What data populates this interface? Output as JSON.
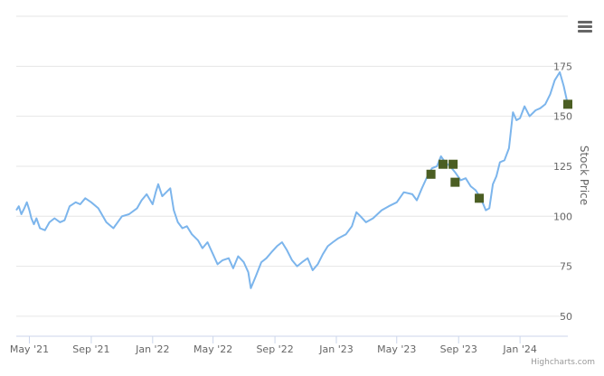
{
  "chart_data": {
    "type": "line",
    "ylabel": "Stock Price",
    "ylim": [
      40,
      200
    ],
    "y_ticks": [
      50,
      75,
      100,
      125,
      150,
      175
    ],
    "x_tick_labels": [
      "May '21",
      "Sep '21",
      "Jan '22",
      "May '22",
      "Sep '22",
      "Jan '23",
      "May '23",
      "Sep '23",
      "Jan '24"
    ],
    "x_range": [
      "2021-04-05",
      "2024-04-05"
    ],
    "grid": true,
    "colors": {
      "line": "#7cb5ec",
      "marker": "#4b5e23",
      "grid": "#e6e6e6",
      "axis": "#ccd6eb",
      "text": "#666666"
    },
    "series": [
      {
        "values": [
          {
            "x": "2021-04-05",
            "y": 103
          },
          {
            "x": "2021-04-10",
            "y": 105
          },
          {
            "x": "2021-04-15",
            "y": 101
          },
          {
            "x": "2021-04-21",
            "y": 104
          },
          {
            "x": "2021-04-26",
            "y": 107
          },
          {
            "x": "2021-05-01",
            "y": 103
          },
          {
            "x": "2021-05-05",
            "y": 99
          },
          {
            "x": "2021-05-10",
            "y": 96
          },
          {
            "x": "2021-05-15",
            "y": 99
          },
          {
            "x": "2021-05-22",
            "y": 94
          },
          {
            "x": "2021-06-01",
            "y": 93
          },
          {
            "x": "2021-06-10",
            "y": 97
          },
          {
            "x": "2021-06-20",
            "y": 99
          },
          {
            "x": "2021-07-01",
            "y": 97
          },
          {
            "x": "2021-07-10",
            "y": 98
          },
          {
            "x": "2021-07-20",
            "y": 105
          },
          {
            "x": "2021-08-01",
            "y": 107
          },
          {
            "x": "2021-08-10",
            "y": 106
          },
          {
            "x": "2021-08-20",
            "y": 109
          },
          {
            "x": "2021-09-01",
            "y": 107
          },
          {
            "x": "2021-09-15",
            "y": 104
          },
          {
            "x": "2021-10-01",
            "y": 97
          },
          {
            "x": "2021-10-15",
            "y": 94
          },
          {
            "x": "2021-11-01",
            "y": 100
          },
          {
            "x": "2021-11-15",
            "y": 101
          },
          {
            "x": "2021-12-01",
            "y": 104
          },
          {
            "x": "2021-12-10",
            "y": 108
          },
          {
            "x": "2021-12-20",
            "y": 111
          },
          {
            "x": "2022-01-01",
            "y": 106
          },
          {
            "x": "2022-01-07",
            "y": 112
          },
          {
            "x": "2022-01-12",
            "y": 116
          },
          {
            "x": "2022-01-20",
            "y": 110
          },
          {
            "x": "2022-01-28",
            "y": 112
          },
          {
            "x": "2022-02-05",
            "y": 114
          },
          {
            "x": "2022-02-12",
            "y": 103
          },
          {
            "x": "2022-02-20",
            "y": 97
          },
          {
            "x": "2022-03-01",
            "y": 94
          },
          {
            "x": "2022-03-10",
            "y": 95
          },
          {
            "x": "2022-03-20",
            "y": 91
          },
          {
            "x": "2022-04-01",
            "y": 88
          },
          {
            "x": "2022-04-10",
            "y": 84
          },
          {
            "x": "2022-04-20",
            "y": 87
          },
          {
            "x": "2022-05-01",
            "y": 81
          },
          {
            "x": "2022-05-10",
            "y": 76
          },
          {
            "x": "2022-05-20",
            "y": 78
          },
          {
            "x": "2022-06-01",
            "y": 79
          },
          {
            "x": "2022-06-10",
            "y": 74
          },
          {
            "x": "2022-06-20",
            "y": 80
          },
          {
            "x": "2022-07-01",
            "y": 77
          },
          {
            "x": "2022-07-10",
            "y": 72
          },
          {
            "x": "2022-07-15",
            "y": 64
          },
          {
            "x": "2022-07-25",
            "y": 70
          },
          {
            "x": "2022-08-05",
            "y": 77
          },
          {
            "x": "2022-08-15",
            "y": 79
          },
          {
            "x": "2022-08-25",
            "y": 82
          },
          {
            "x": "2022-09-05",
            "y": 85
          },
          {
            "x": "2022-09-15",
            "y": 87
          },
          {
            "x": "2022-09-25",
            "y": 83
          },
          {
            "x": "2022-10-05",
            "y": 78
          },
          {
            "x": "2022-10-15",
            "y": 75
          },
          {
            "x": "2022-10-25",
            "y": 77
          },
          {
            "x": "2022-11-05",
            "y": 79
          },
          {
            "x": "2022-11-15",
            "y": 73
          },
          {
            "x": "2022-11-25",
            "y": 76
          },
          {
            "x": "2022-12-05",
            "y": 81
          },
          {
            "x": "2022-12-15",
            "y": 85
          },
          {
            "x": "2022-12-25",
            "y": 87
          },
          {
            "x": "2023-01-05",
            "y": 89
          },
          {
            "x": "2023-01-20",
            "y": 91
          },
          {
            "x": "2023-02-01",
            "y": 95
          },
          {
            "x": "2023-02-10",
            "y": 102
          },
          {
            "x": "2023-02-18",
            "y": 100
          },
          {
            "x": "2023-03-01",
            "y": 97
          },
          {
            "x": "2023-03-15",
            "y": 99
          },
          {
            "x": "2023-04-01",
            "y": 103
          },
          {
            "x": "2023-04-15",
            "y": 105
          },
          {
            "x": "2023-05-01",
            "y": 107
          },
          {
            "x": "2023-05-15",
            "y": 112
          },
          {
            "x": "2023-06-01",
            "y": 111
          },
          {
            "x": "2023-06-10",
            "y": 108
          },
          {
            "x": "2023-06-20",
            "y": 114
          },
          {
            "x": "2023-07-01",
            "y": 120
          },
          {
            "x": "2023-07-10",
            "y": 124
          },
          {
            "x": "2023-07-20",
            "y": 125
          },
          {
            "x": "2023-07-28",
            "y": 130
          },
          {
            "x": "2023-08-05",
            "y": 127
          },
          {
            "x": "2023-08-15",
            "y": 125
          },
          {
            "x": "2023-08-25",
            "y": 122
          },
          {
            "x": "2023-09-05",
            "y": 118
          },
          {
            "x": "2023-09-15",
            "y": 119
          },
          {
            "x": "2023-09-25",
            "y": 115
          },
          {
            "x": "2023-10-05",
            "y": 113
          },
          {
            "x": "2023-10-15",
            "y": 109
          },
          {
            "x": "2023-10-25",
            "y": 103
          },
          {
            "x": "2023-11-01",
            "y": 104
          },
          {
            "x": "2023-11-08",
            "y": 116
          },
          {
            "x": "2023-11-15",
            "y": 120
          },
          {
            "x": "2023-11-22",
            "y": 127
          },
          {
            "x": "2023-12-01",
            "y": 128
          },
          {
            "x": "2023-12-10",
            "y": 134
          },
          {
            "x": "2023-12-18",
            "y": 152
          },
          {
            "x": "2023-12-25",
            "y": 148
          },
          {
            "x": "2024-01-01",
            "y": 149
          },
          {
            "x": "2024-01-10",
            "y": 155
          },
          {
            "x": "2024-01-20",
            "y": 150
          },
          {
            "x": "2024-02-01",
            "y": 153
          },
          {
            "x": "2024-02-10",
            "y": 154
          },
          {
            "x": "2024-02-20",
            "y": 156
          },
          {
            "x": "2024-03-01",
            "y": 161
          },
          {
            "x": "2024-03-10",
            "y": 168
          },
          {
            "x": "2024-03-20",
            "y": 172
          },
          {
            "x": "2024-03-28",
            "y": 165
          },
          {
            "x": "2024-04-03",
            "y": 158
          },
          {
            "x": "2024-04-05",
            "y": 156
          }
        ]
      }
    ],
    "markers": [
      {
        "x": "2023-07-08",
        "y": 121
      },
      {
        "x": "2023-08-01",
        "y": 126
      },
      {
        "x": "2023-08-21",
        "y": 126
      },
      {
        "x": "2023-08-25",
        "y": 117
      },
      {
        "x": "2023-10-12",
        "y": 109
      },
      {
        "x": "2024-04-05",
        "y": 156
      }
    ]
  },
  "credit": "Highcharts.com",
  "icons": {
    "menu": "hamburger-menu-icon"
  }
}
